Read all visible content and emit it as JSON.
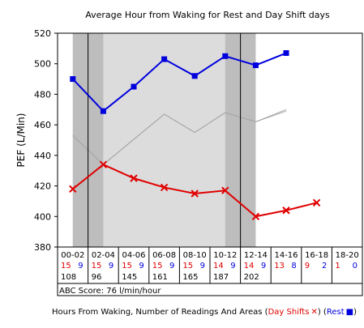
{
  "chart_data": {
    "type": "line",
    "title": "Average Hour from Waking for Rest and Day Shift days",
    "ylabel": "PEF (L/Min)",
    "xlabel": "Hours From Waking, Number of Readings And Areas",
    "ylim": [
      380,
      520
    ],
    "yticks": [
      380,
      400,
      420,
      440,
      460,
      480,
      500,
      520
    ],
    "grid": false,
    "categories": [
      "00-02",
      "02-04",
      "04-06",
      "06-08",
      "08-10",
      "10-12",
      "12-14",
      "14-16",
      "16-18",
      "18-20"
    ],
    "series": [
      {
        "name": "Day Shifts",
        "color": "#e00000",
        "marker": "x",
        "values": [
          418,
          434,
          425,
          419,
          415,
          417,
          400,
          404,
          409,
          null
        ]
      },
      {
        "name": "Rest",
        "color": "#0000dd",
        "marker": "square",
        "values": [
          490,
          469,
          485,
          503,
          492,
          505,
          499,
          507,
          null,
          null
        ]
      }
    ],
    "gray_lines": [
      {
        "points": [
          [
            0.0,
            453
          ],
          [
            1.0,
            434
          ],
          [
            3.0,
            467
          ],
          [
            4.0,
            455
          ],
          [
            5.0,
            468
          ],
          [
            6.0,
            462
          ],
          [
            7.0,
            470
          ]
        ]
      },
      {
        "points": [
          [
            0.0,
            453
          ],
          [
            1.0,
            434
          ],
          [
            3.0,
            467
          ],
          [
            4.0,
            455
          ],
          [
            5.0,
            468
          ],
          [
            6.0,
            462
          ],
          [
            7.0,
            469
          ]
        ]
      }
    ],
    "shaded_regions": [
      {
        "from": 0,
        "to": 6,
        "color": "#dcdcdc"
      },
      {
        "from": 0,
        "to": 1,
        "color": "#bdbdbd"
      },
      {
        "from": 5,
        "to": 6,
        "color": "#bdbdbd"
      }
    ],
    "vertical_lines": [
      0.5,
      5.5
    ],
    "table": {
      "day_counts": [
        "15",
        "15",
        "15",
        "15",
        "15",
        "14",
        "14",
        "13",
        "9",
        "1"
      ],
      "rest_counts": [
        "9",
        "9",
        "9",
        "9",
        "9",
        "9",
        "9",
        "8",
        "2",
        "0"
      ],
      "areas": [
        "108",
        "96",
        "145",
        "161",
        "165",
        "187",
        "202",
        "",
        "",
        ""
      ]
    },
    "score_text": "ABC Score: 76 l/min/hour",
    "legend": {
      "prefix": "Hours From Waking, Number of Readings And Areas (",
      "day_label": "Day Shifts",
      "middle": ") (",
      "rest_label": "Rest",
      "suffix": ")",
      "day_color": "#e00000",
      "rest_color": "#0000dd"
    }
  }
}
